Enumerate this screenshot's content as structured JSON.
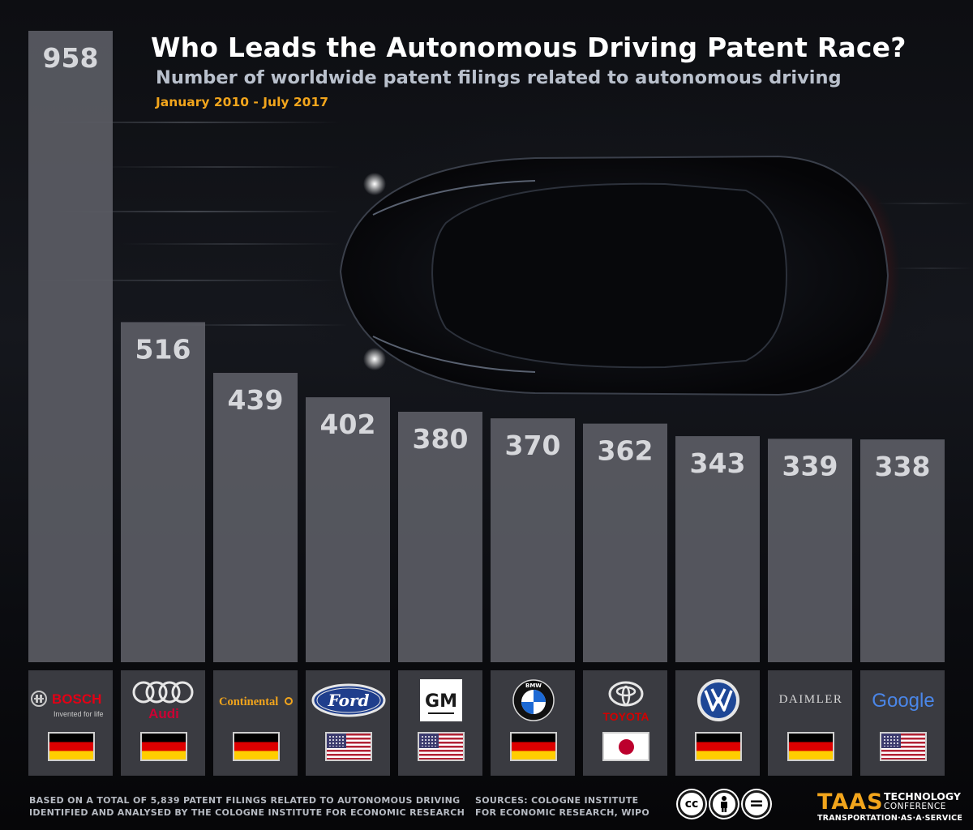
{
  "header": {
    "title": "Who Leads the Autonomous Driving Patent Race?",
    "subtitle": "Number of worldwide patent filings related to autonomous driving",
    "period": "January 2010 - July 2017"
  },
  "chart_data": {
    "type": "bar",
    "title": "Who Leads the Autonomous Driving Patent Race?",
    "subtitle": "Number of worldwide patent filings related to autonomous driving",
    "categories": [
      "BOSCH",
      "Audi",
      "Continental",
      "Ford",
      "GM",
      "BMW",
      "TOYOTA",
      "VW",
      "DAIMLER",
      "Google"
    ],
    "values": [
      958,
      516,
      439,
      402,
      380,
      370,
      362,
      343,
      339,
      338
    ],
    "countries": [
      "DE",
      "DE",
      "DE",
      "US",
      "US",
      "DE",
      "JP",
      "DE",
      "DE",
      "US"
    ],
    "ylim": [
      0,
      958
    ],
    "grid": false,
    "legend": "none",
    "bar_color": "#5e6068",
    "label_color": "#d6d7db"
  },
  "logos": {
    "bosch_name": "BOSCH",
    "bosch_tagline": "Invented for life",
    "audi_name": "Audi",
    "continental_name": "Continental",
    "ford_name": "Ford",
    "gm_name": "GM",
    "bmw_name": "BMW",
    "toyota_name": "TOYOTA",
    "daimler_name": "DAIMLER",
    "google_name": "Google"
  },
  "colors": {
    "accent": "#f2a51c",
    "bosch_red": "#e20015",
    "audi_red": "#cc0033",
    "ford_blue": "#1f3e8c",
    "toyota_red": "#d40000"
  },
  "footer": {
    "note_line1": "BASED ON A TOTAL OF 5,839 PATENT FILINGS RELATED TO AUTONOMOUS DRIVING",
    "note_line2": "IDENTIFIED AND ANALYSED BY THE COLOGNE INSTITUTE FOR ECONOMIC RESEARCH",
    "sources_line1": "SOURCES:  COLOGNE INSTITUTE",
    "sources_line2": "FOR ECONOMIC RESEARCH, WIPO",
    "cc": "cc",
    "cc_equals": "=",
    "brand": "TAAS",
    "brand_tech": "TECHNOLOGY",
    "brand_conf": "CONFERENCE",
    "brand_tagline": "TRANSPORTATION·AS·A·SERVICE"
  }
}
